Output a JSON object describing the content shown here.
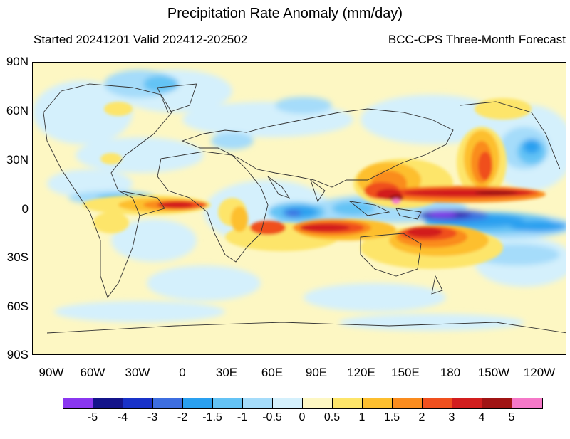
{
  "title": "Precipitation Rate Anomaly (mm/day)",
  "subtitle_left": "Started 20241201  Valid 202412-202502",
  "subtitle_right": "BCC-CPS Three-Month Forecast",
  "y_axis_labels": [
    "90N",
    "60N",
    "30N",
    "0",
    "30S",
    "60S",
    "90S"
  ],
  "x_axis_labels": [
    "90W",
    "60W",
    "30W",
    "0",
    "30E",
    "60E",
    "90E",
    "120E",
    "150E",
    "180",
    "150W",
    "120W"
  ],
  "colorbar": {
    "colors": [
      "#8a37f0",
      "#14148a",
      "#1932c8",
      "#3d6ee0",
      "#2aa0f0",
      "#64c3f5",
      "#a5dcfa",
      "#d4f0fc",
      "#fdf7c3",
      "#fde56a",
      "#fdbf2f",
      "#fa8c1e",
      "#f0501e",
      "#d21e1e",
      "#a01414",
      "#f578c8"
    ],
    "labels": [
      "-5",
      "-4",
      "-3",
      "-2",
      "-1.5",
      "-1",
      "-0.5",
      "0",
      "0.5",
      "1",
      "1.5",
      "2",
      "3",
      "4",
      "5"
    ]
  },
  "legend_colors": {
    "strong_negative": "#3a1fb0",
    "negative": "#2aa0f0",
    "weak_negative": "#a5dcfa",
    "neutral": "#fdf7c3",
    "weak_positive": "#fde56a",
    "positive": "#fa8c1e",
    "strong_positive": "#d21e1e",
    "extreme_positive": "#f578c8"
  }
}
